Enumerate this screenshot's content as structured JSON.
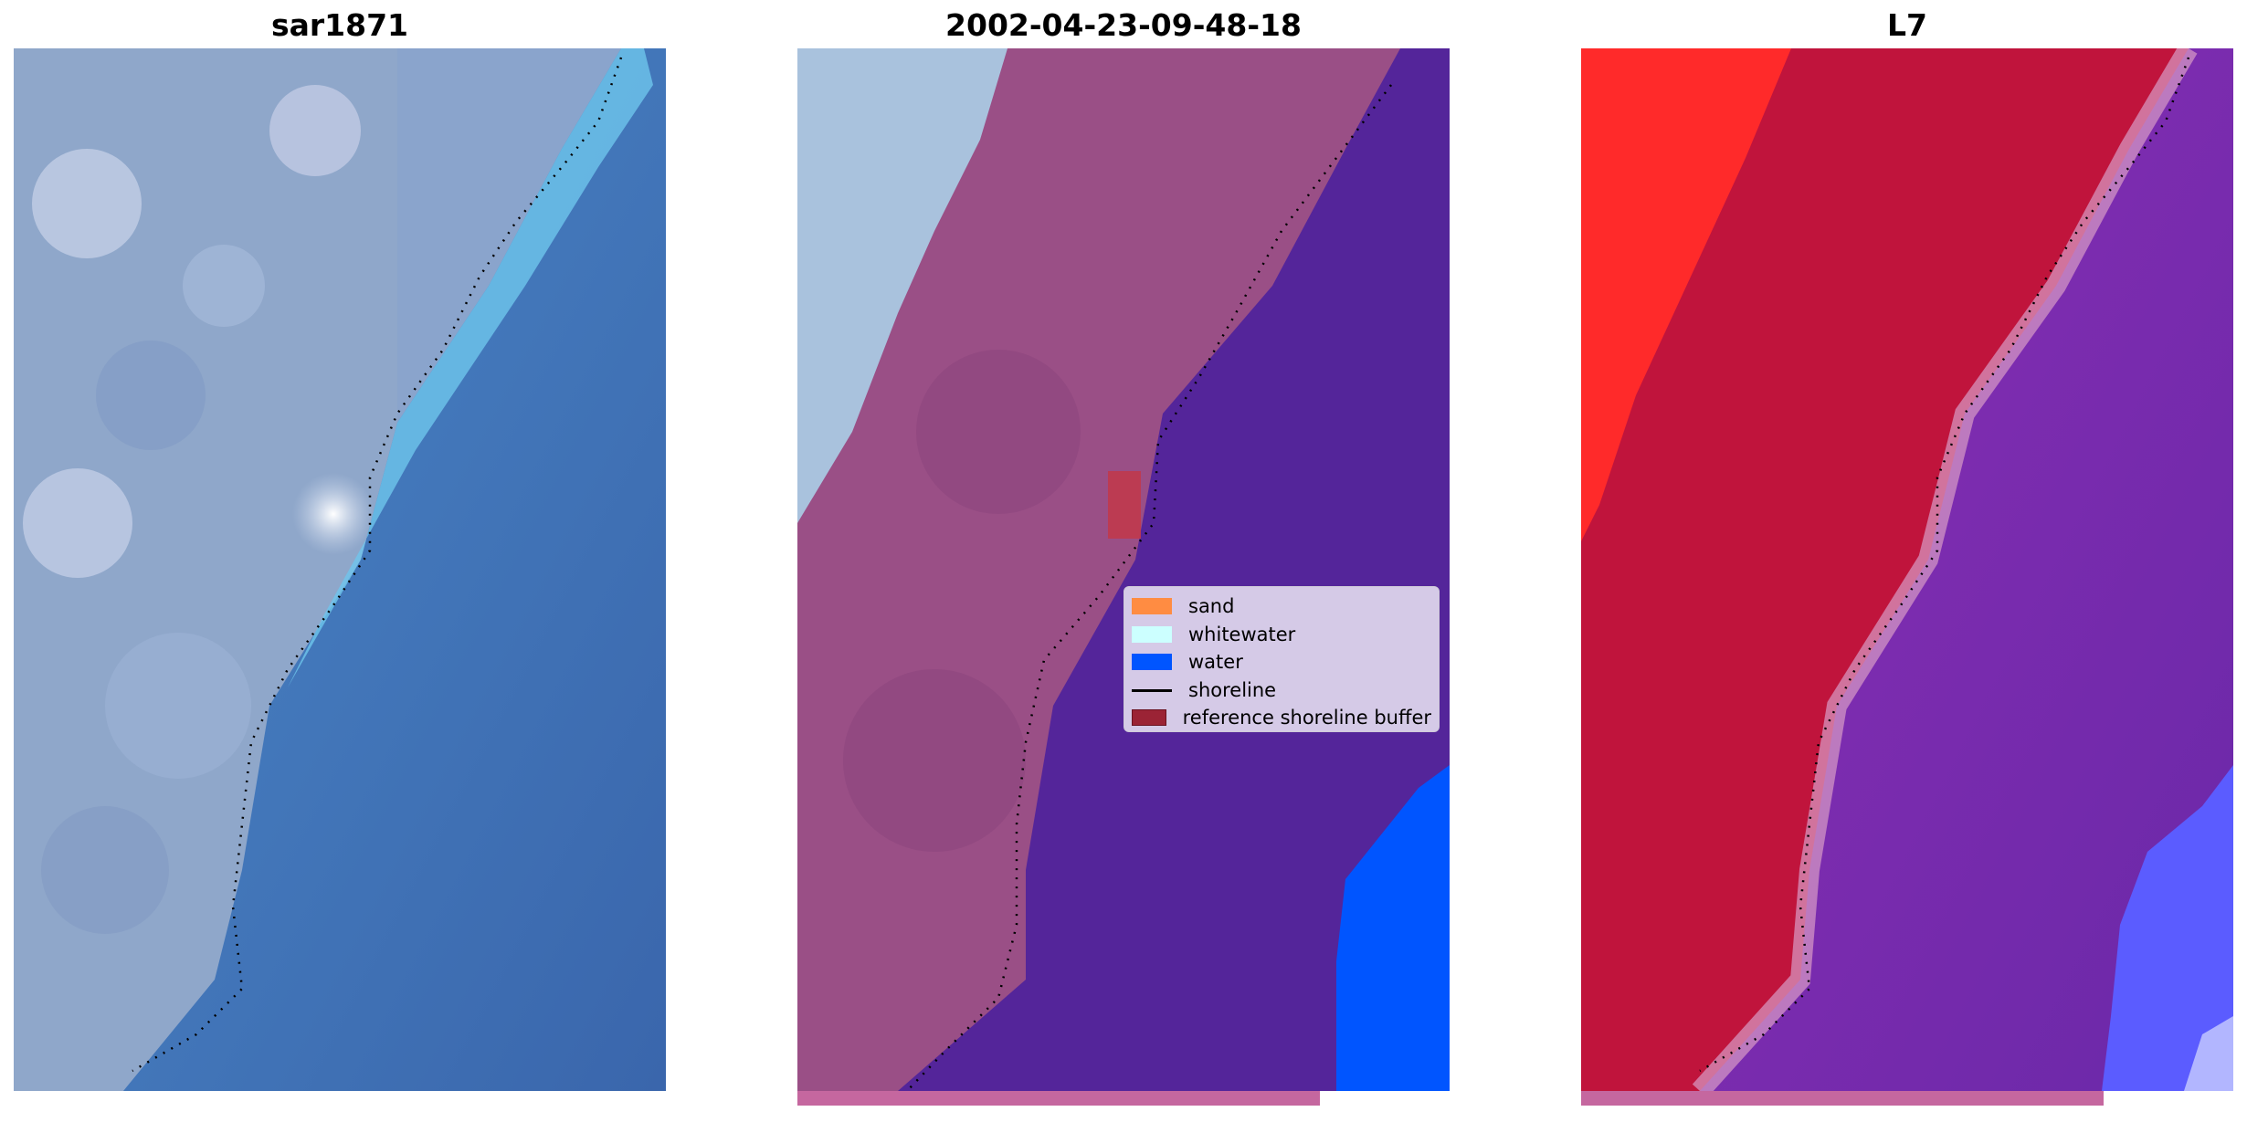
{
  "panels": [
    {
      "title": "sar1871"
    },
    {
      "title": "2002-04-23-09-48-18"
    },
    {
      "title": "L7"
    }
  ],
  "legend": {
    "items": [
      {
        "label": "sand",
        "color": "#ff8c42",
        "kind": "patch"
      },
      {
        "label": "whitewater",
        "color": "#ccffff",
        "kind": "patch"
      },
      {
        "label": "water",
        "color": "#0055ff",
        "kind": "patch"
      },
      {
        "label": "shoreline",
        "color": "#000000",
        "kind": "line"
      },
      {
        "label": "reference shoreline buffer",
        "color": "#9b2335",
        "kind": "patch"
      }
    ]
  },
  "colors": {
    "rgb_land": "#8fa6c8",
    "rgb_water": "#3f6fb3",
    "rgb_surf": "#6fc6ea",
    "class_land": "#9a4f86",
    "class_water": "#54259a",
    "class_water_blue": "#0055ff",
    "class_whitewater_rgb": "#a9c2dd",
    "mndwi_land": "#c0143c",
    "mndwi_bright": "#ff2222",
    "mndwi_water": "#7a30b0",
    "mndwi_water_blue": "#5b5cff",
    "bar": "#c5679f"
  }
}
